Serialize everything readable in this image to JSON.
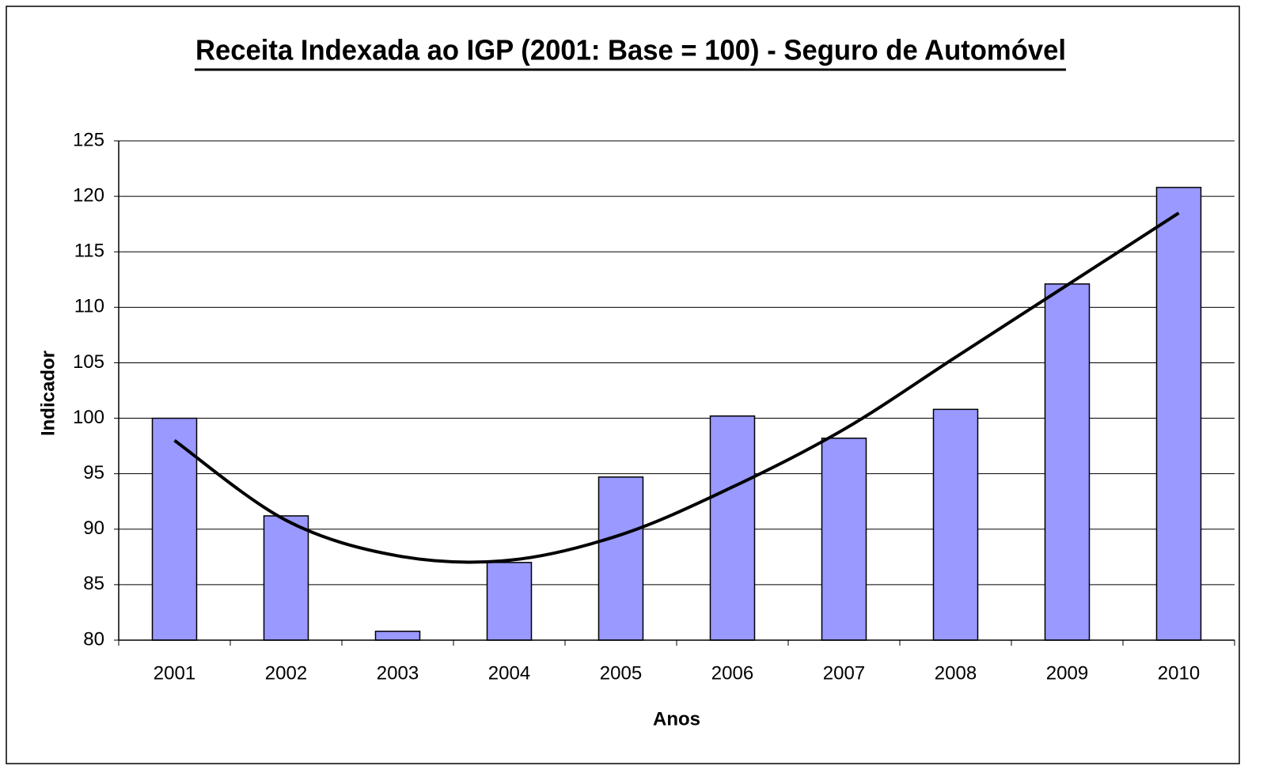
{
  "chart_data": {
    "type": "bar",
    "title": "Receita Indexada ao IGP (2001: Base = 100) - Seguro de Automóvel",
    "x_label": "Anos",
    "y_label": "Indicador",
    "categories": [
      "2001",
      "2002",
      "2003",
      "2004",
      "2005",
      "2006",
      "2007",
      "2008",
      "2009",
      "2010"
    ],
    "values": [
      100,
      91.2,
      80.8,
      87,
      94.7,
      100.2,
      98.2,
      100.8,
      112.1,
      120.8
    ],
    "color": "#9999ff",
    "trendline": {
      "values": [
        98,
        90.8,
        87.6,
        87.2,
        89.5,
        93.8,
        99,
        105.5,
        112,
        118.5
      ],
      "color": "#000000"
    },
    "ylim": [
      80,
      125
    ],
    "yticks": [
      80,
      85,
      90,
      95,
      100,
      105,
      110,
      115,
      120,
      125
    ],
    "grid": true
  }
}
